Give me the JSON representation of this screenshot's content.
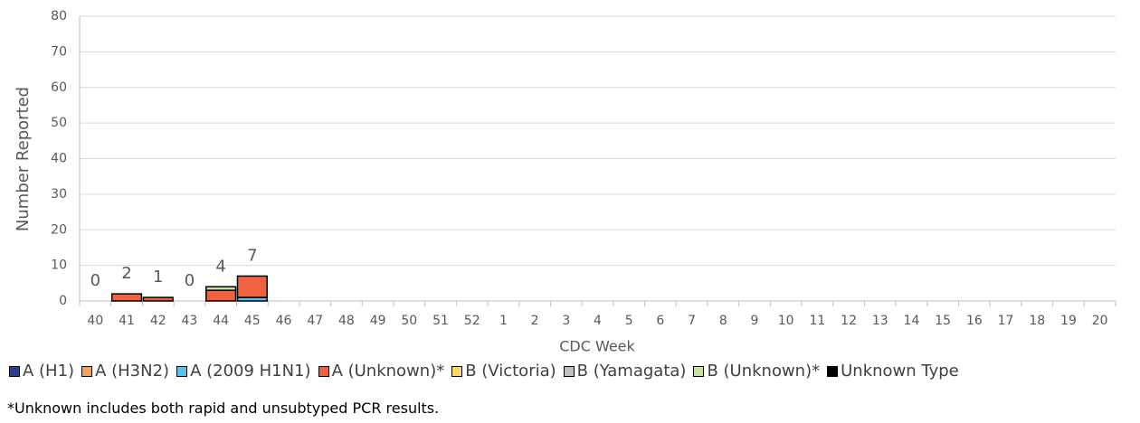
{
  "chart_data": {
    "type": "stacked-bar",
    "x_label": "CDC Week",
    "y_label": "Number Reported",
    "categories": [
      "40",
      "41",
      "42",
      "43",
      "44",
      "45",
      "46",
      "47",
      "48",
      "49",
      "50",
      "51",
      "52",
      "1",
      "2",
      "3",
      "4",
      "5",
      "6",
      "7",
      "8",
      "9",
      "10",
      "11",
      "12",
      "13",
      "14",
      "15",
      "16",
      "17",
      "18",
      "19",
      "20"
    ],
    "series": [
      {
        "name": "A (H1)",
        "color": "#2f3f8f",
        "values": [
          0,
          0,
          0,
          0,
          0,
          0,
          null,
          null,
          null,
          null,
          null,
          null,
          null,
          null,
          null,
          null,
          null,
          null,
          null,
          null,
          null,
          null,
          null,
          null,
          null,
          null,
          null,
          null,
          null,
          null,
          null,
          null,
          null
        ]
      },
      {
        "name": "A (H3N2)",
        "color": "#f4a15d",
        "values": [
          0,
          0,
          0,
          0,
          0,
          0,
          null,
          null,
          null,
          null,
          null,
          null,
          null,
          null,
          null,
          null,
          null,
          null,
          null,
          null,
          null,
          null,
          null,
          null,
          null,
          null,
          null,
          null,
          null,
          null,
          null,
          null,
          null
        ]
      },
      {
        "name": "A (2009 H1N1)",
        "color": "#5bc2ec",
        "values": [
          0,
          0,
          0,
          0,
          0,
          1,
          null,
          null,
          null,
          null,
          null,
          null,
          null,
          null,
          null,
          null,
          null,
          null,
          null,
          null,
          null,
          null,
          null,
          null,
          null,
          null,
          null,
          null,
          null,
          null,
          null,
          null,
          null
        ]
      },
      {
        "name": "A (Unknown)*",
        "color": "#f0623f",
        "values": [
          0,
          2,
          1,
          0,
          3,
          6,
          null,
          null,
          null,
          null,
          null,
          null,
          null,
          null,
          null,
          null,
          null,
          null,
          null,
          null,
          null,
          null,
          null,
          null,
          null,
          null,
          null,
          null,
          null,
          null,
          null,
          null,
          null
        ]
      },
      {
        "name": "B (Victoria)",
        "color": "#ffd966",
        "values": [
          0,
          0,
          0,
          0,
          0,
          0,
          null,
          null,
          null,
          null,
          null,
          null,
          null,
          null,
          null,
          null,
          null,
          null,
          null,
          null,
          null,
          null,
          null,
          null,
          null,
          null,
          null,
          null,
          null,
          null,
          null,
          null,
          null
        ]
      },
      {
        "name": "B (Yamagata)",
        "color": "#bfbfbf",
        "values": [
          0,
          0,
          0,
          0,
          0,
          0,
          null,
          null,
          null,
          null,
          null,
          null,
          null,
          null,
          null,
          null,
          null,
          null,
          null,
          null,
          null,
          null,
          null,
          null,
          null,
          null,
          null,
          null,
          null,
          null,
          null,
          null,
          null
        ]
      },
      {
        "name": "B (Unknown)*",
        "color": "#c9e2a3",
        "values": [
          0,
          0,
          0,
          0,
          1,
          0,
          null,
          null,
          null,
          null,
          null,
          null,
          null,
          null,
          null,
          null,
          null,
          null,
          null,
          null,
          null,
          null,
          null,
          null,
          null,
          null,
          null,
          null,
          null,
          null,
          null,
          null,
          null
        ]
      },
      {
        "name": "Unknown Type",
        "color": "#000000",
        "values": [
          0,
          0,
          0,
          0,
          0,
          0,
          null,
          null,
          null,
          null,
          null,
          null,
          null,
          null,
          null,
          null,
          null,
          null,
          null,
          null,
          null,
          null,
          null,
          null,
          null,
          null,
          null,
          null,
          null,
          null,
          null,
          null,
          null
        ]
      }
    ],
    "totals": [
      0,
      2,
      1,
      0,
      4,
      7,
      null,
      null,
      null,
      null,
      null,
      null,
      null,
      null,
      null,
      null,
      null,
      null,
      null,
      null,
      null,
      null,
      null,
      null,
      null,
      null,
      null,
      null,
      null,
      null,
      null,
      null,
      null
    ],
    "ylim": [
      0,
      80
    ],
    "yticks": [
      0,
      10,
      20,
      30,
      40,
      50,
      60,
      70,
      80
    ],
    "grid": true,
    "footnote": "*Unknown includes both rapid and unsubtyped PCR results."
  }
}
